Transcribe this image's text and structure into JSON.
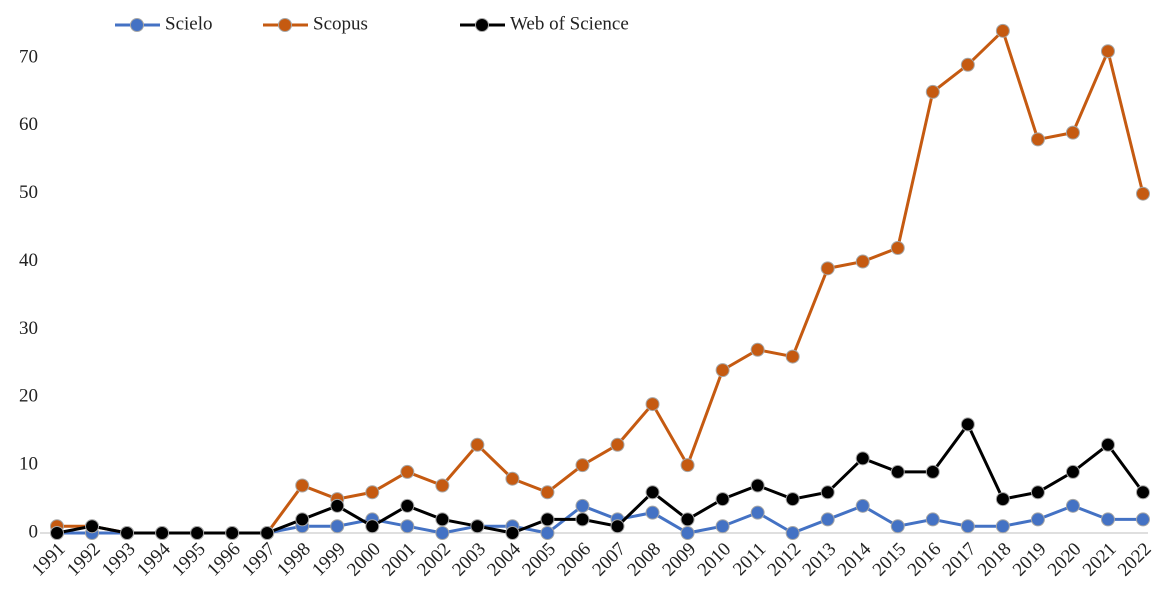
{
  "chart_data": {
    "type": "line",
    "categories": [
      "1991",
      "1992",
      "1993",
      "1994",
      "1995",
      "1996",
      "1997",
      "1998",
      "1999",
      "2000",
      "2001",
      "2002",
      "2003",
      "2004",
      "2005",
      "2006",
      "2007",
      "2008",
      "2009",
      "2010",
      "2011",
      "2012",
      "2013",
      "2014",
      "2015",
      "2016",
      "2017",
      "2018",
      "2019",
      "2020",
      "2021",
      "2022"
    ],
    "series": [
      {
        "name": "Scielo",
        "color": "#4472c4",
        "values": [
          0,
          0,
          0,
          0,
          0,
          0,
          0,
          1,
          1,
          2,
          1,
          0,
          1,
          1,
          0,
          4,
          2,
          3,
          0,
          1,
          3,
          0,
          2,
          4,
          1,
          2,
          1,
          1,
          2,
          4,
          2,
          2
        ]
      },
      {
        "name": "Scopus",
        "color": "#c55a11",
        "values": [
          1,
          1,
          0,
          0,
          0,
          0,
          0,
          7,
          5,
          6,
          9,
          7,
          13,
          8,
          6,
          10,
          13,
          19,
          10,
          24,
          27,
          26,
          39,
          40,
          42,
          65,
          69,
          74,
          58,
          59,
          71,
          50
        ]
      },
      {
        "name": "Web of Science",
        "color": "#000000",
        "values": [
          0,
          1,
          0,
          0,
          0,
          0,
          0,
          2,
          4,
          1,
          4,
          2,
          1,
          0,
          2,
          2,
          1,
          6,
          2,
          5,
          7,
          5,
          6,
          11,
          9,
          9,
          16,
          5,
          6,
          9,
          13,
          6
        ]
      }
    ],
    "ylim": [
      0,
      75
    ],
    "yticks": [
      0,
      10,
      20,
      30,
      40,
      50,
      60,
      70
    ],
    "grid": false,
    "legend": "top"
  }
}
